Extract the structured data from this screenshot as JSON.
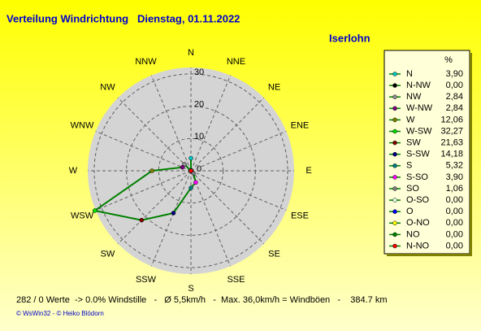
{
  "chart_data": {
    "type": "radar",
    "title": "Verteilung Windrichtung   Dienstag, 01.11.2022",
    "subtitle": "Iserlohn",
    "categories": [
      "N",
      "NNW",
      "NW",
      "WNW",
      "W",
      "WSW",
      "SW",
      "SSW",
      "S",
      "SSE",
      "SE",
      "ESE",
      "E",
      "ENE",
      "NE",
      "NNE"
    ],
    "legend_names": [
      "N",
      "N-NW",
      "NW",
      "W-NW",
      "W",
      "W-SW",
      "SW",
      "S-SW",
      "S",
      "S-SO",
      "SO",
      "O-SO",
      "O",
      "O-NO",
      "NO",
      "N-NO"
    ],
    "values": [
      3.9,
      0.0,
      2.84,
      2.84,
      12.06,
      32.27,
      21.63,
      14.18,
      5.32,
      3.9,
      1.06,
      0.0,
      0.0,
      0.0,
      0.0,
      0.0
    ],
    "value_labels": [
      "3,90",
      "0,00",
      "2,84",
      "2,84",
      "12,06",
      "32,27",
      "21,63",
      "14,18",
      "5,32",
      "3,90",
      "1,06",
      "0,00",
      "0,00",
      "0,00",
      "0,00",
      "0,00"
    ],
    "marker_colors": [
      "#00c8c8",
      "#000000",
      "#909090",
      "#800080",
      "#808000",
      "#00e000",
      "#800000",
      "#000080",
      "#008080",
      "#ff00ff",
      "#808080",
      "#e0ffe0",
      "#0000ff",
      "#ffff00",
      "#008000",
      "#ff0000"
    ],
    "color": "#008000",
    "legend_header": "%",
    "rlim": [
      0,
      32
    ],
    "rticks": [
      0,
      10,
      20,
      30
    ],
    "grid": true,
    "footer": "282 / 0 Werte  -> 0.0% Windstille   -   Ø 5,5km/h   -  Max. 36,0km/h = Windböen   -    384.7 km",
    "credits": "© WsWin32  -  © Heiko Blödorn"
  }
}
